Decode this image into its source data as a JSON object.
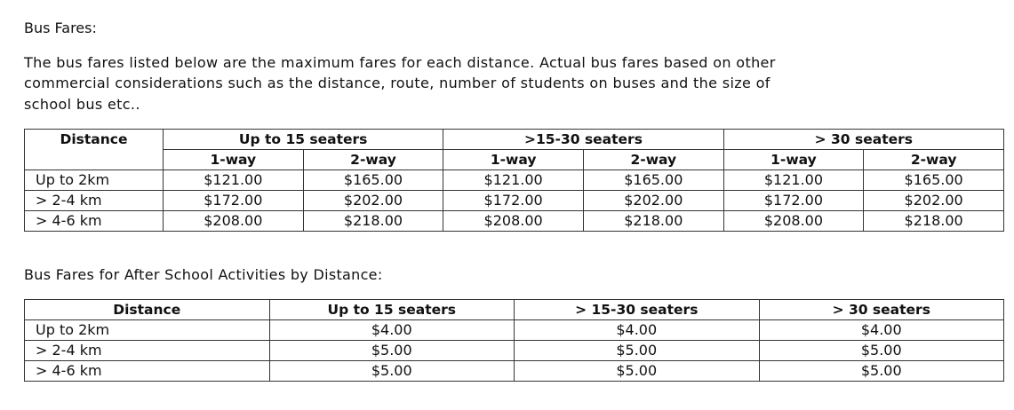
{
  "heading": "Bus Fares:",
  "paragraph": [
    "The bus fares listed below are the maximum fares for each distance.  Actual bus fares based on other",
    "commercial considerations such as the distance, route, number of students on buses and the size of",
    "school bus etc.."
  ],
  "table1": {
    "distance_header": "Distance",
    "groups": [
      "Up to 15 seaters",
      ">15-30 seaters",
      "> 30 seaters"
    ],
    "subheaders": [
      "1-way",
      "2-way"
    ],
    "rows": [
      {
        "distance": "Up to 2km",
        "values": [
          "$121.00",
          "$165.00",
          "$121.00",
          "$165.00",
          "$121.00",
          "$165.00"
        ]
      },
      {
        "distance": "> 2-4 km",
        "values": [
          "$172.00",
          "$202.00",
          "$172.00",
          "$202.00",
          "$172.00",
          "$202.00"
        ]
      },
      {
        "distance": "> 4-6 km",
        "values": [
          "$208.00",
          "$218.00",
          "$208.00",
          "$218.00",
          "$208.00",
          "$218.00"
        ]
      }
    ]
  },
  "subheading": "Bus Fares for After School Activities by Distance:",
  "table2": {
    "headers": [
      "Distance",
      "Up to 15 seaters",
      "> 15-30 seaters",
      "> 30 seaters"
    ],
    "rows": [
      {
        "distance": "Up to 2km",
        "values": [
          "$4.00",
          "$4.00",
          "$4.00"
        ]
      },
      {
        "distance": "> 2-4 km",
        "values": [
          "$5.00",
          "$5.00",
          "$5.00"
        ]
      },
      {
        "distance": "> 4-6 km",
        "values": [
          "$5.00",
          "$5.00",
          "$5.00"
        ]
      }
    ]
  }
}
